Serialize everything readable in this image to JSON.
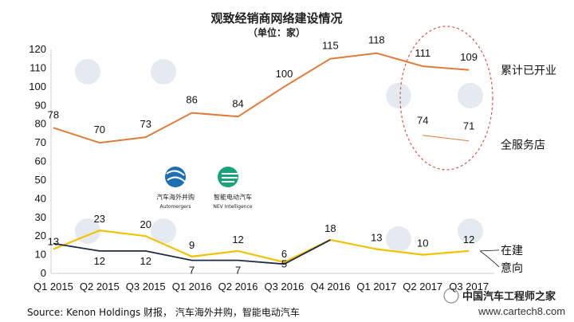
{
  "chart_data": {
    "type": "line",
    "title": "观致经销商网络建设情况",
    "subtitle": "（单位：家）",
    "categories": [
      "Q1 2015",
      "Q2 2015",
      "Q3 2015",
      "Q1 2016",
      "Q2 2016",
      "Q3 2016",
      "Q4 2016",
      "Q1 2017",
      "Q2 2017",
      "Q3 2017"
    ],
    "ylim": [
      0,
      120
    ],
    "yticks": [
      0,
      10,
      20,
      30,
      40,
      50,
      60,
      70,
      80,
      90,
      100,
      110,
      120
    ],
    "grid": false,
    "series": [
      {
        "name": "累计已开业",
        "color": "#e07b39",
        "values": [
          78,
          70,
          73,
          86,
          84,
          100,
          115,
          118,
          111,
          109
        ]
      },
      {
        "name": "全服务店",
        "color": "#e07b39",
        "values": [
          null,
          null,
          null,
          null,
          null,
          null,
          null,
          null,
          74,
          71
        ]
      },
      {
        "name": "在建",
        "color": "#f2c200",
        "values": [
          13,
          23,
          20,
          9,
          12,
          6,
          18,
          13,
          10,
          12
        ]
      },
      {
        "name": "意向",
        "color": "#1f2a44",
        "values": [
          16,
          12,
          12,
          7,
          7,
          5,
          18,
          null,
          null,
          null
        ]
      }
    ],
    "data_labels": {
      "累计已开业": [
        "78",
        "70",
        "73",
        "86",
        "84",
        "100",
        "115",
        "118",
        "111",
        "109"
      ],
      "全服务店": [
        null,
        null,
        null,
        null,
        null,
        null,
        null,
        null,
        "74",
        "71"
      ],
      "在建": [
        "13",
        "23",
        "20",
        "9",
        "12",
        "6",
        "18",
        "13",
        "10",
        "12"
      ],
      "意向": [
        "",
        "12",
        "12",
        "7",
        "7",
        "5",
        "",
        "",
        "",
        ""
      ]
    },
    "annotations": [
      "ellipse highlight around Q2 2017 - Q3 2017"
    ]
  },
  "source_text": "Source: Kenon Holdings 财报， 汽车海外并购，智能电动汽车",
  "logos": {
    "left_name": "汽车海外并购",
    "left_en": "Automergers",
    "right_name": "智能电动汽车",
    "right_en": "NEV Intelligence"
  },
  "watermark_text": "中国汽车工程师之家",
  "watermark_url": "www.cartech8.com"
}
